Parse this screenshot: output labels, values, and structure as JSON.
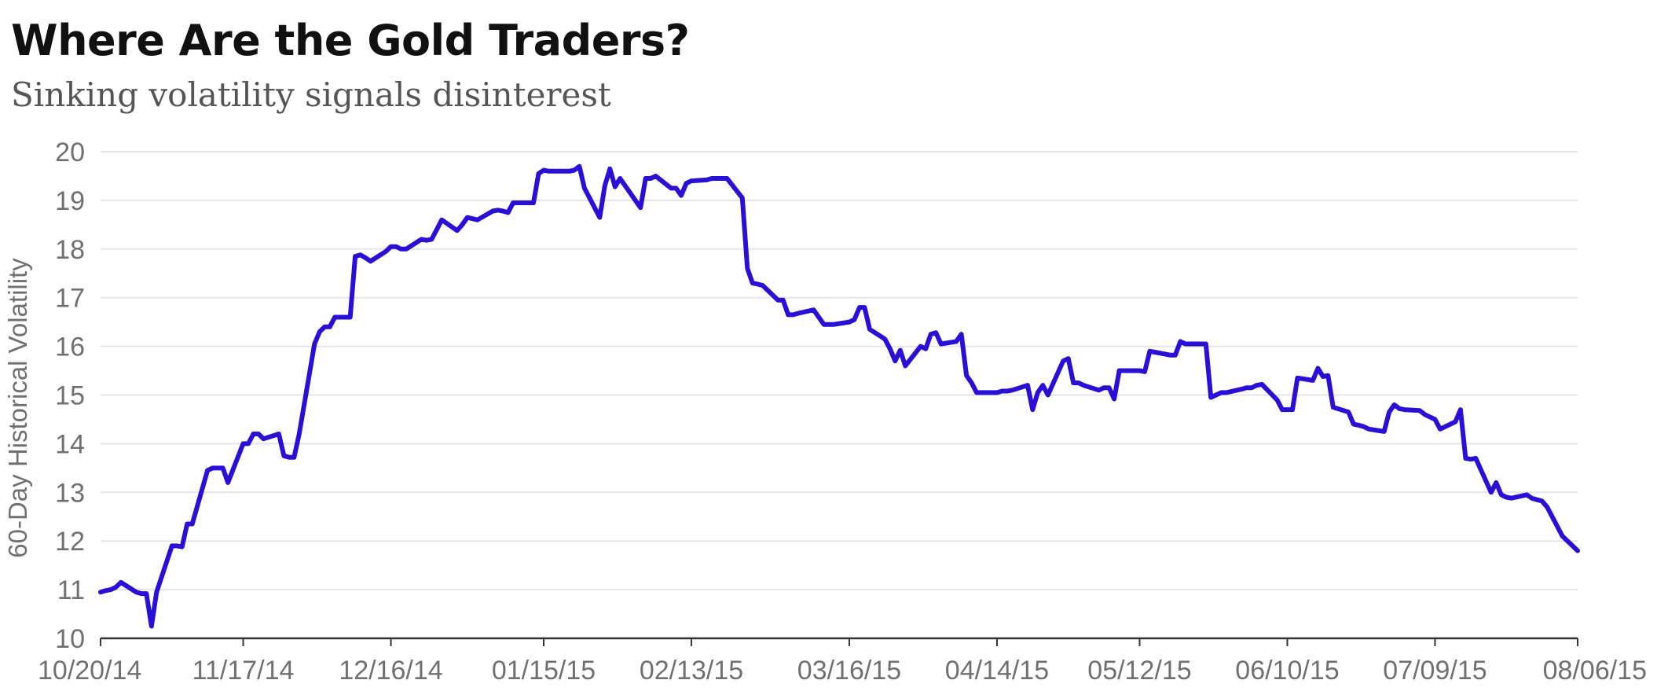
{
  "title": "Where Are the Gold Traders?",
  "subtitle": "Sinking volatility signals disinterest",
  "colors": {
    "line": "#2a10d6",
    "grid": "#e3e5ee",
    "axis": "#333333",
    "text": "#707070"
  },
  "chart_data": {
    "type": "line",
    "title": "Where Are the Gold Traders?",
    "subtitle": "Sinking volatility signals disinterest",
    "xlabel": "",
    "ylabel": "60-Day Historical Volatility",
    "ylim": [
      10,
      20
    ],
    "yticks": [
      10,
      11,
      12,
      13,
      14,
      15,
      16,
      17,
      18,
      19,
      20
    ],
    "grid": true,
    "xlim": [
      "2014-10-20",
      "2015-08-06"
    ],
    "xticks": [
      {
        "date": "2014-10-20",
        "label": "10/20/14"
      },
      {
        "date": "2014-11-17",
        "label": "11/17/14"
      },
      {
        "date": "2014-12-16",
        "label": "12/16/14"
      },
      {
        "date": "2015-01-15",
        "label": "01/15/15"
      },
      {
        "date": "2015-02-13",
        "label": "02/13/15"
      },
      {
        "date": "2015-03-16",
        "label": "03/16/15"
      },
      {
        "date": "2015-04-14",
        "label": "04/14/15"
      },
      {
        "date": "2015-05-12",
        "label": "05/12/15"
      },
      {
        "date": "2015-06-10",
        "label": "06/10/15"
      },
      {
        "date": "2015-07-09",
        "label": "07/09/15"
      },
      {
        "date": "2015-08-06",
        "label": "08/06/15"
      }
    ],
    "series": [
      {
        "points": [
          [
            "2014-10-20",
            10.95
          ],
          [
            "2014-10-21",
            10.98
          ],
          [
            "2014-10-22",
            11.0
          ],
          [
            "2014-10-23",
            11.05
          ],
          [
            "2014-10-24",
            11.15
          ],
          [
            "2014-10-27",
            10.95
          ],
          [
            "2014-10-28",
            10.92
          ],
          [
            "2014-10-29",
            10.92
          ],
          [
            "2014-10-30",
            10.25
          ],
          [
            "2014-10-31",
            10.95
          ],
          [
            "2014-11-03",
            11.9
          ],
          [
            "2014-11-04",
            11.9
          ],
          [
            "2014-11-05",
            11.88
          ],
          [
            "2014-11-06",
            12.35
          ],
          [
            "2014-11-07",
            12.35
          ],
          [
            "2014-11-10",
            13.45
          ],
          [
            "2014-11-11",
            13.5
          ],
          [
            "2014-11-12",
            13.5
          ],
          [
            "2014-11-13",
            13.5
          ],
          [
            "2014-11-14",
            13.2
          ],
          [
            "2014-11-17",
            14.0
          ],
          [
            "2014-11-18",
            14.0
          ],
          [
            "2014-11-19",
            14.2
          ],
          [
            "2014-11-20",
            14.2
          ],
          [
            "2014-11-21",
            14.1
          ],
          [
            "2014-11-24",
            14.2
          ],
          [
            "2014-11-25",
            13.75
          ],
          [
            "2014-11-26",
            13.72
          ],
          [
            "2014-11-27",
            13.72
          ],
          [
            "2014-11-28",
            14.2
          ],
          [
            "2014-12-01",
            16.05
          ],
          [
            "2014-12-02",
            16.3
          ],
          [
            "2014-12-03",
            16.4
          ],
          [
            "2014-12-04",
            16.4
          ],
          [
            "2014-12-05",
            16.6
          ],
          [
            "2014-12-08",
            16.6
          ],
          [
            "2014-12-09",
            17.85
          ],
          [
            "2014-12-10",
            17.88
          ],
          [
            "2014-12-11",
            17.82
          ],
          [
            "2014-12-12",
            17.75
          ],
          [
            "2014-12-15",
            17.95
          ],
          [
            "2014-12-16",
            18.05
          ],
          [
            "2014-12-17",
            18.05
          ],
          [
            "2014-12-18",
            18.0
          ],
          [
            "2014-12-19",
            18.0
          ],
          [
            "2014-12-22",
            18.2
          ],
          [
            "2014-12-23",
            18.18
          ],
          [
            "2014-12-24",
            18.2
          ],
          [
            "2014-12-26",
            18.6
          ],
          [
            "2014-12-29",
            18.38
          ],
          [
            "2014-12-30",
            18.5
          ],
          [
            "2014-12-31",
            18.65
          ],
          [
            "2015-01-02",
            18.6
          ],
          [
            "2015-01-05",
            18.78
          ],
          [
            "2015-01-06",
            18.8
          ],
          [
            "2015-01-07",
            18.78
          ],
          [
            "2015-01-08",
            18.75
          ],
          [
            "2015-01-09",
            18.95
          ],
          [
            "2015-01-12",
            18.95
          ],
          [
            "2015-01-13",
            18.95
          ],
          [
            "2015-01-14",
            19.55
          ],
          [
            "2015-01-15",
            19.62
          ],
          [
            "2015-01-16",
            19.6
          ],
          [
            "2015-01-19",
            19.6
          ],
          [
            "2015-01-20",
            19.6
          ],
          [
            "2015-01-21",
            19.62
          ],
          [
            "2015-01-22",
            19.7
          ],
          [
            "2015-01-23",
            19.25
          ],
          [
            "2015-01-26",
            18.65
          ],
          [
            "2015-01-27",
            19.3
          ],
          [
            "2015-01-28",
            19.65
          ],
          [
            "2015-01-29",
            19.28
          ],
          [
            "2015-01-30",
            19.45
          ],
          [
            "2015-02-02",
            19.0
          ],
          [
            "2015-02-03",
            18.85
          ],
          [
            "2015-02-04",
            19.45
          ],
          [
            "2015-02-05",
            19.45
          ],
          [
            "2015-02-06",
            19.5
          ],
          [
            "2015-02-09",
            19.25
          ],
          [
            "2015-02-10",
            19.25
          ],
          [
            "2015-02-11",
            19.1
          ],
          [
            "2015-02-12",
            19.35
          ],
          [
            "2015-02-13",
            19.4
          ],
          [
            "2015-02-16",
            19.42
          ],
          [
            "2015-02-17",
            19.45
          ],
          [
            "2015-02-18",
            19.45
          ],
          [
            "2015-02-19",
            19.45
          ],
          [
            "2015-02-20",
            19.45
          ],
          [
            "2015-02-23",
            19.05
          ],
          [
            "2015-02-24",
            17.6
          ],
          [
            "2015-02-25",
            17.3
          ],
          [
            "2015-02-26",
            17.28
          ],
          [
            "2015-02-27",
            17.25
          ],
          [
            "2015-03-02",
            16.95
          ],
          [
            "2015-03-03",
            16.95
          ],
          [
            "2015-03-04",
            16.65
          ],
          [
            "2015-03-05",
            16.65
          ],
          [
            "2015-03-06",
            16.68
          ],
          [
            "2015-03-09",
            16.75
          ],
          [
            "2015-03-10",
            16.6
          ],
          [
            "2015-03-11",
            16.45
          ],
          [
            "2015-03-12",
            16.45
          ],
          [
            "2015-03-13",
            16.45
          ],
          [
            "2015-03-16",
            16.5
          ],
          [
            "2015-03-17",
            16.55
          ],
          [
            "2015-03-18",
            16.8
          ],
          [
            "2015-03-19",
            16.8
          ],
          [
            "2015-03-20",
            16.35
          ],
          [
            "2015-03-23",
            16.15
          ],
          [
            "2015-03-24",
            15.95
          ],
          [
            "2015-03-25",
            15.7
          ],
          [
            "2015-03-26",
            15.92
          ],
          [
            "2015-03-27",
            15.6
          ],
          [
            "2015-03-30",
            16.0
          ],
          [
            "2015-03-31",
            15.95
          ],
          [
            "2015-04-01",
            16.25
          ],
          [
            "2015-04-02",
            16.28
          ],
          [
            "2015-04-03",
            16.05
          ],
          [
            "2015-04-06",
            16.1
          ],
          [
            "2015-04-07",
            16.25
          ],
          [
            "2015-04-08",
            15.4
          ],
          [
            "2015-04-09",
            15.25
          ],
          [
            "2015-04-10",
            15.05
          ],
          [
            "2015-04-13",
            15.05
          ],
          [
            "2015-04-14",
            15.05
          ],
          [
            "2015-04-15",
            15.08
          ],
          [
            "2015-04-16",
            15.08
          ],
          [
            "2015-04-17",
            15.1
          ],
          [
            "2015-04-20",
            15.2
          ],
          [
            "2015-04-21",
            14.7
          ],
          [
            "2015-04-22",
            15.05
          ],
          [
            "2015-04-23",
            15.2
          ],
          [
            "2015-04-24",
            15.0
          ],
          [
            "2015-04-27",
            15.7
          ],
          [
            "2015-04-28",
            15.75
          ],
          [
            "2015-04-29",
            15.25
          ],
          [
            "2015-04-30",
            15.25
          ],
          [
            "2015-05-01",
            15.2
          ],
          [
            "2015-05-04",
            15.1
          ],
          [
            "2015-05-05",
            15.15
          ],
          [
            "2015-05-06",
            15.15
          ],
          [
            "2015-05-07",
            14.92
          ],
          [
            "2015-05-08",
            15.5
          ],
          [
            "2015-05-11",
            15.5
          ],
          [
            "2015-05-12",
            15.5
          ],
          [
            "2015-05-13",
            15.48
          ],
          [
            "2015-05-14",
            15.9
          ],
          [
            "2015-05-15",
            15.88
          ],
          [
            "2015-05-18",
            15.82
          ],
          [
            "2015-05-19",
            15.82
          ],
          [
            "2015-05-20",
            16.1
          ],
          [
            "2015-05-21",
            16.05
          ],
          [
            "2015-05-22",
            16.05
          ],
          [
            "2015-05-25",
            16.05
          ],
          [
            "2015-05-26",
            14.95
          ],
          [
            "2015-05-27",
            15.0
          ],
          [
            "2015-05-28",
            15.05
          ],
          [
            "2015-05-29",
            15.05
          ],
          [
            "2015-06-01",
            15.12
          ],
          [
            "2015-06-02",
            15.15
          ],
          [
            "2015-06-03",
            15.15
          ],
          [
            "2015-06-04",
            15.2
          ],
          [
            "2015-06-05",
            15.22
          ],
          [
            "2015-06-08",
            14.9
          ],
          [
            "2015-06-09",
            14.7
          ],
          [
            "2015-06-10",
            14.7
          ],
          [
            "2015-06-11",
            14.7
          ],
          [
            "2015-06-12",
            15.35
          ],
          [
            "2015-06-15",
            15.3
          ],
          [
            "2015-06-16",
            15.55
          ],
          [
            "2015-06-17",
            15.38
          ],
          [
            "2015-06-18",
            15.4
          ],
          [
            "2015-06-19",
            14.75
          ],
          [
            "2015-06-22",
            14.65
          ],
          [
            "2015-06-23",
            14.4
          ],
          [
            "2015-06-24",
            14.38
          ],
          [
            "2015-06-25",
            14.35
          ],
          [
            "2015-06-26",
            14.3
          ],
          [
            "2015-06-29",
            14.25
          ],
          [
            "2015-06-30",
            14.65
          ],
          [
            "2015-07-01",
            14.8
          ],
          [
            "2015-07-02",
            14.72
          ],
          [
            "2015-07-03",
            14.7
          ],
          [
            "2015-07-06",
            14.68
          ],
          [
            "2015-07-07",
            14.6
          ],
          [
            "2015-07-08",
            14.55
          ],
          [
            "2015-07-09",
            14.5
          ],
          [
            "2015-07-10",
            14.3
          ],
          [
            "2015-07-13",
            14.45
          ],
          [
            "2015-07-14",
            14.7
          ],
          [
            "2015-07-15",
            13.7
          ],
          [
            "2015-07-16",
            13.68
          ],
          [
            "2015-07-17",
            13.7
          ],
          [
            "2015-07-20",
            13.0
          ],
          [
            "2015-07-21",
            13.2
          ],
          [
            "2015-07-22",
            12.95
          ],
          [
            "2015-07-23",
            12.9
          ],
          [
            "2015-07-24",
            12.88
          ],
          [
            "2015-07-27",
            12.95
          ],
          [
            "2015-07-28",
            12.88
          ],
          [
            "2015-07-29",
            12.85
          ],
          [
            "2015-07-30",
            12.82
          ],
          [
            "2015-07-31",
            12.7
          ],
          [
            "2015-08-03",
            12.1
          ],
          [
            "2015-08-06",
            11.8
          ]
        ]
      }
    ]
  }
}
